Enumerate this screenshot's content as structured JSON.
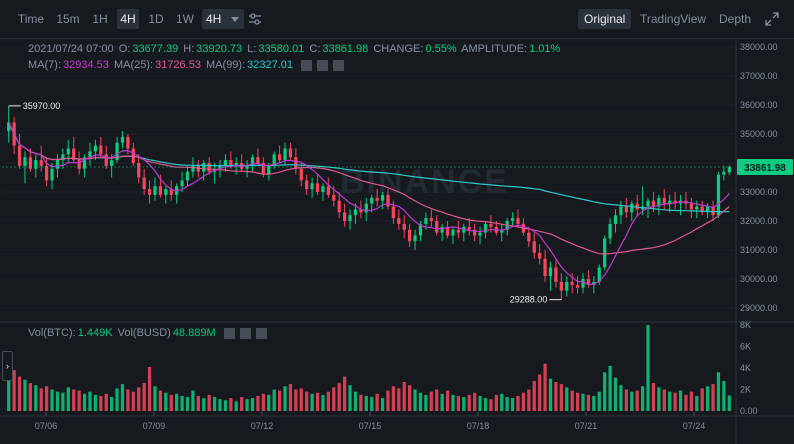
{
  "toolbar": {
    "intervals": [
      {
        "label": "Time",
        "state": "normal"
      },
      {
        "label": "15m",
        "state": "normal"
      },
      {
        "label": "1H",
        "state": "normal"
      },
      {
        "label": "4H",
        "state": "active"
      },
      {
        "label": "1D",
        "state": "normal"
      },
      {
        "label": "1W",
        "state": "normal"
      }
    ],
    "dropdown_label": "4H",
    "views": [
      {
        "label": "Original",
        "state": "active"
      },
      {
        "label": "TradingView",
        "state": "normal"
      },
      {
        "label": "Depth",
        "state": "normal"
      }
    ],
    "icons": {
      "settings": "sliders-icon",
      "fullscreen": "expand-icon",
      "dropdown": "caret-down-icon"
    }
  },
  "ohlc": {
    "date": "2021/07/24 07:00",
    "open_label": "O:",
    "open": "33677.39",
    "high_label": "H:",
    "high": "33920.73",
    "low_label": "L:",
    "low": "33580.01",
    "close_label": "C:",
    "close": "33861.98",
    "change_label": "CHANGE:",
    "change": "0.55%",
    "amplitude_label": "AMPLITUDE:",
    "amplitude": "1.01%"
  },
  "ma": {
    "ma7_label": "MA(7):",
    "ma7": "32934.53",
    "ma25_label": "MA(25):",
    "ma25": "31726.53",
    "ma99_label": "MA(99):",
    "ma99": "32327.01"
  },
  "volume": {
    "btc_label": "Vol(BTC):",
    "btc": "1.449K",
    "busd_label": "Vol(BUSD)",
    "busd": "48.889M"
  },
  "colors": {
    "up": "#0ecb81",
    "down": "#f6465d",
    "ma7": "#c039d0",
    "ma25": "#e05790",
    "ma99": "#2ec7c9",
    "bg": "#161a1e"
  },
  "chart_data": {
    "type": "candlestick",
    "price_axis": {
      "labels": [
        "38000.00",
        "37000.00",
        "36000.00",
        "35000.00",
        "34000.00",
        "33000.00",
        "32000.00",
        "31000.00",
        "30000.00",
        "29000.00"
      ],
      "min": 29000,
      "max": 38000
    },
    "volume_axis": {
      "labels": [
        "8K",
        "6K",
        "4K",
        "2K",
        "0.00"
      ],
      "max": 8000
    },
    "x_labels": [
      "07/06",
      "07/09",
      "07/12",
      "07/15",
      "07/18",
      "07/21",
      "07/24"
    ],
    "last_price": "33861.98",
    "high_marker": "35970.00",
    "low_marker": "29288.00",
    "candles": [
      [
        35100,
        35970,
        34700,
        35400,
        4200
      ],
      [
        35400,
        35600,
        34300,
        34600,
        3800
      ],
      [
        34600,
        35000,
        33800,
        33900,
        3200
      ],
      [
        33900,
        34400,
        33300,
        34200,
        2900
      ],
      [
        34200,
        34500,
        33700,
        33800,
        2600
      ],
      [
        33800,
        34300,
        33500,
        34100,
        2400
      ],
      [
        34100,
        34600,
        33700,
        33900,
        2100
      ],
      [
        33900,
        34200,
        33200,
        33400,
        2300
      ],
      [
        33400,
        34000,
        33100,
        33800,
        2000
      ],
      [
        33800,
        34300,
        33500,
        34100,
        1800
      ],
      [
        34100,
        34500,
        33800,
        34300,
        1700
      ],
      [
        34300,
        34800,
        34000,
        34500,
        2200
      ],
      [
        34500,
        34900,
        34000,
        34100,
        2000
      ],
      [
        34100,
        34400,
        33600,
        33800,
        1900
      ],
      [
        33800,
        34300,
        33500,
        34200,
        1600
      ],
      [
        34200,
        34700,
        33900,
        34400,
        1800
      ],
      [
        34400,
        34800,
        34100,
        34600,
        1500
      ],
      [
        34600,
        34900,
        34200,
        34300,
        1400
      ],
      [
        34300,
        34600,
        33800,
        33900,
        1600
      ],
      [
        33900,
        34300,
        33500,
        34100,
        1300
      ],
      [
        34100,
        34900,
        34000,
        34700,
        2100
      ],
      [
        34700,
        35100,
        34500,
        34900,
        2500
      ],
      [
        34900,
        35000,
        34300,
        34500,
        2000
      ],
      [
        34500,
        34700,
        33900,
        34000,
        1800
      ],
      [
        34000,
        34300,
        33300,
        33500,
        2200
      ],
      [
        33500,
        33800,
        32900,
        33100,
        2600
      ],
      [
        33100,
        33400,
        32600,
        32900,
        4100
      ],
      [
        32900,
        33500,
        32700,
        33200,
        2300
      ],
      [
        33200,
        33600,
        32800,
        32900,
        1900
      ],
      [
        32900,
        33200,
        32600,
        33100,
        1700
      ],
      [
        33100,
        33400,
        32700,
        32900,
        1500
      ],
      [
        32900,
        33300,
        32600,
        33200,
        1600
      ],
      [
        33200,
        33700,
        33000,
        33400,
        1400
      ],
      [
        33400,
        33900,
        33200,
        33700,
        1300
      ],
      [
        33700,
        34200,
        33500,
        33900,
        1900
      ],
      [
        33900,
        34100,
        33500,
        33700,
        1400
      ],
      [
        33700,
        34100,
        33400,
        34000,
        1200
      ],
      [
        34000,
        34200,
        33600,
        33700,
        1500
      ],
      [
        33700,
        34000,
        33300,
        33800,
        1300
      ],
      [
        33800,
        34100,
        33500,
        33900,
        1100
      ],
      [
        33900,
        34300,
        33700,
        34100,
        1000
      ],
      [
        34100,
        34400,
        33800,
        33900,
        1200
      ],
      [
        33900,
        34200,
        33600,
        34000,
        900
      ],
      [
        34000,
        34300,
        33700,
        33800,
        1300
      ],
      [
        33800,
        34100,
        33500,
        33900,
        1100
      ],
      [
        33900,
        34300,
        33700,
        34200,
        1200
      ],
      [
        34200,
        34500,
        33900,
        34000,
        1400
      ],
      [
        34000,
        34200,
        33500,
        33600,
        1600
      ],
      [
        33600,
        34000,
        33400,
        33900,
        1500
      ],
      [
        33900,
        34400,
        33800,
        34300,
        2000
      ],
      [
        34300,
        34600,
        34000,
        34100,
        1900
      ],
      [
        34100,
        34700,
        33900,
        34500,
        2300
      ],
      [
        34500,
        34700,
        34100,
        34200,
        2500
      ],
      [
        34200,
        34500,
        33600,
        33800,
        2000
      ],
      [
        33800,
        34000,
        33200,
        33400,
        2100
      ],
      [
        33400,
        33600,
        32900,
        33100,
        1800
      ],
      [
        33100,
        33500,
        32800,
        33300,
        1600
      ],
      [
        33300,
        33600,
        32900,
        33000,
        1700
      ],
      [
        33000,
        33300,
        32700,
        33200,
        1500
      ],
      [
        33200,
        33500,
        32800,
        32900,
        1800
      ],
      [
        32900,
        33200,
        32500,
        32700,
        2200
      ],
      [
        32700,
        33000,
        32100,
        32300,
        2600
      ],
      [
        32300,
        32600,
        31800,
        32000,
        3200
      ],
      [
        32000,
        32400,
        31700,
        32200,
        2400
      ],
      [
        32200,
        32600,
        31900,
        32400,
        1800
      ],
      [
        32400,
        32700,
        32100,
        32300,
        1500
      ],
      [
        32300,
        32800,
        32000,
        32600,
        1400
      ],
      [
        32600,
        32900,
        32300,
        32800,
        1300
      ],
      [
        32800,
        33100,
        32500,
        32700,
        1600
      ],
      [
        32700,
        33000,
        32400,
        32900,
        1200
      ],
      [
        32900,
        33100,
        32400,
        32500,
        1900
      ],
      [
        32500,
        32700,
        31900,
        32100,
        2300
      ],
      [
        32100,
        32400,
        31700,
        31900,
        2100
      ],
      [
        31900,
        32200,
        31400,
        31700,
        2700
      ],
      [
        31700,
        31900,
        31100,
        31300,
        2400
      ],
      [
        31300,
        31700,
        31000,
        31500,
        2000
      ],
      [
        31500,
        32000,
        31300,
        31900,
        1700
      ],
      [
        31900,
        32300,
        31700,
        32100,
        1500
      ],
      [
        32100,
        32400,
        31800,
        32000,
        1800
      ],
      [
        32000,
        32200,
        31500,
        31600,
        2000
      ],
      [
        31600,
        31900,
        31300,
        31800,
        1600
      ],
      [
        31800,
        32000,
        31400,
        31500,
        1900
      ],
      [
        31500,
        31800,
        31200,
        31700,
        1500
      ],
      [
        31700,
        32000,
        31400,
        31600,
        1400
      ],
      [
        31600,
        31900,
        31300,
        31800,
        1300
      ],
      [
        31800,
        32100,
        31500,
        31700,
        1500
      ],
      [
        31700,
        31900,
        31300,
        31500,
        1700
      ],
      [
        31500,
        31800,
        31200,
        31600,
        1400
      ],
      [
        31600,
        32000,
        31400,
        31900,
        1200
      ],
      [
        31900,
        32200,
        31600,
        31800,
        1100
      ],
      [
        31800,
        32000,
        31500,
        31600,
        1500
      ],
      [
        31600,
        31900,
        31300,
        31700,
        1600
      ],
      [
        31700,
        32100,
        31500,
        32000,
        1300
      ],
      [
        32000,
        32300,
        31800,
        32100,
        1200
      ],
      [
        32100,
        32400,
        31800,
        31900,
        1400
      ],
      [
        31900,
        32100,
        31500,
        31600,
        1700
      ],
      [
        31600,
        31800,
        31100,
        31300,
        2000
      ],
      [
        31300,
        31600,
        30700,
        30900,
        2800
      ],
      [
        30900,
        31200,
        30500,
        30700,
        3400
      ],
      [
        30700,
        31000,
        29900,
        30100,
        4400
      ],
      [
        30100,
        30600,
        29600,
        30400,
        3000
      ],
      [
        30400,
        30700,
        29700,
        29900,
        2700
      ],
      [
        29900,
        30200,
        29288,
        29600,
        2500
      ],
      [
        29600,
        30100,
        29400,
        29900,
        2200
      ],
      [
        29900,
        30200,
        29500,
        29800,
        1900
      ],
      [
        29800,
        30100,
        29500,
        29700,
        1700
      ],
      [
        29700,
        30200,
        29500,
        30000,
        1600
      ],
      [
        30000,
        30300,
        29700,
        29800,
        1500
      ],
      [
        29800,
        30100,
        29500,
        29900,
        1400
      ],
      [
        29900,
        30500,
        29800,
        30400,
        1800
      ],
      [
        30400,
        31500,
        30300,
        31400,
        3600
      ],
      [
        31400,
        32100,
        31200,
        31900,
        4200
      ],
      [
        31900,
        32400,
        31600,
        32200,
        3100
      ],
      [
        32200,
        32700,
        31900,
        32500,
        2400
      ],
      [
        32500,
        32800,
        32100,
        32300,
        2000
      ],
      [
        32300,
        32700,
        32000,
        32600,
        1800
      ],
      [
        32600,
        32900,
        32200,
        32400,
        1900
      ],
      [
        32400,
        33200,
        32200,
        32500,
        2300
      ],
      [
        32500,
        32800,
        32100,
        32700,
        8000
      ],
      [
        32700,
        33000,
        32300,
        32500,
        2600
      ],
      [
        32500,
        32900,
        32200,
        32800,
        2200
      ],
      [
        32800,
        33100,
        32400,
        32600,
        2000
      ],
      [
        32600,
        32900,
        32300,
        32700,
        1800
      ],
      [
        32700,
        33000,
        32400,
        32600,
        1700
      ],
      [
        32600,
        32900,
        32200,
        32700,
        1900
      ],
      [
        32700,
        33000,
        32400,
        32600,
        1500
      ],
      [
        32600,
        32800,
        32100,
        32400,
        1800
      ],
      [
        32400,
        32700,
        32100,
        32500,
        1400
      ],
      [
        32500,
        32700,
        32200,
        32300,
        2100
      ],
      [
        32300,
        32600,
        32100,
        32500,
        2300
      ],
      [
        32500,
        32700,
        32000,
        32200,
        2500
      ],
      [
        32200,
        33700,
        32100,
        33600,
        3600
      ],
      [
        33600,
        33900,
        33400,
        33700,
        2800
      ],
      [
        33677,
        33921,
        33580,
        33862,
        1449
      ]
    ]
  }
}
